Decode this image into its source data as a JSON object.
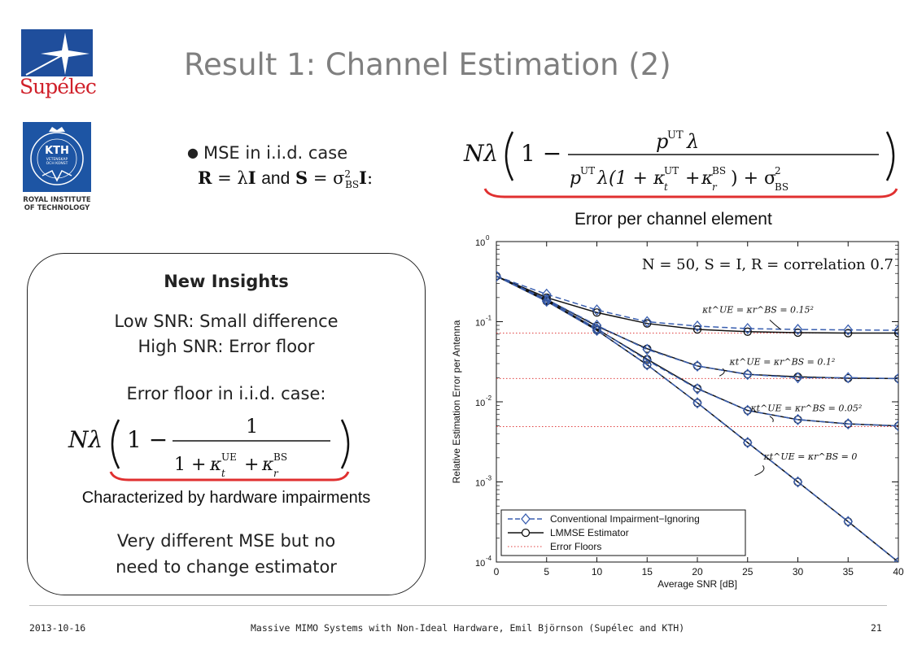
{
  "header": {
    "title": "Result 1: Channel Estimation (2)"
  },
  "logos": {
    "supelec_text": "Supélec",
    "kth_text": "KTH",
    "kth_ring": "VETENSKAP OCH KONST",
    "kth_caption_line1": "ROYAL INSTITUTE",
    "kth_caption_line2": "OF TECHNOLOGY"
  },
  "bullet": {
    "text": "MSE in i.i.d. case",
    "condition_and": "and"
  },
  "formula_label": "Error per channel element",
  "insights": {
    "heading": "New Insights",
    "line1": "Low SNR: Small difference",
    "line2": "High SNR: Error floor",
    "line3": "Error floor in i.i.d. case:",
    "caption": "Characterized by hardware impairments",
    "line4": "Very different MSE but no",
    "line5": "need to change estimator"
  },
  "footer": {
    "date": "2013-10-16",
    "center": "Massive MIMO Systems with Non-Ideal Hardware, Emil Björnson (Supélec and KTH)",
    "page": "21"
  },
  "colors": {
    "supelec_blue": "#1f4e9c",
    "supelec_red": "#d0202a",
    "kth_blue": "#1d55a4",
    "underline_red": "#e03030",
    "series_blue": "#3a5fb0",
    "floor_red": "#e04040"
  },
  "chart_data": {
    "type": "line",
    "title": "",
    "subtitle": "N = 50, S = I, R = correlation 0.7",
    "xlabel": "Average SNR [dB]",
    "ylabel": "Relative Estimation Error per Antenna",
    "xlim": [
      0,
      40
    ],
    "ylim": [
      0.0001,
      1
    ],
    "yscale": "log",
    "x_ticks": [
      0,
      5,
      10,
      15,
      20,
      25,
      30,
      35,
      40
    ],
    "y_ticks": [
      {
        "value": 1,
        "label": "10",
        "exp": "0"
      },
      {
        "value": 0.1,
        "label": "10",
        "exp": "-1"
      },
      {
        "value": 0.01,
        "label": "10",
        "exp": "-2"
      },
      {
        "value": 0.001,
        "label": "10",
        "exp": "-3"
      },
      {
        "value": 0.0001,
        "label": "10",
        "exp": "-4"
      }
    ],
    "x": [
      0,
      5,
      10,
      15,
      20,
      25,
      30,
      35,
      40
    ],
    "grid": false,
    "legend_position": "bottom-left",
    "legend": [
      {
        "label": "Conventional Impairment−Ignoring",
        "style": "dashed-diamond",
        "color": "#3a5fb0"
      },
      {
        "label": "LMMSE Estimator",
        "style": "solid-circle",
        "color": "#111111"
      },
      {
        "label": "Error Floors",
        "style": "dotted",
        "color": "#e04040"
      }
    ],
    "groups": [
      {
        "annotation": "κt^UE = κr^BS = 0.15²",
        "floor": 0.072,
        "conventional": [
          0.37,
          0.22,
          0.14,
          0.1,
          0.088,
          0.082,
          0.08,
          0.079,
          0.078
        ],
        "lmmse": [
          0.37,
          0.2,
          0.13,
          0.095,
          0.08,
          0.075,
          0.073,
          0.072,
          0.072
        ]
      },
      {
        "annotation": "κt^UE = κr^BS = 0.1²",
        "floor": 0.0195,
        "conventional": [
          0.37,
          0.19,
          0.09,
          0.045,
          0.028,
          0.022,
          0.02,
          0.02,
          0.0195
        ],
        "lmmse": [
          0.37,
          0.19,
          0.088,
          0.046,
          0.028,
          0.022,
          0.0205,
          0.0197,
          0.0195
        ]
      },
      {
        "annotation": "κt^UE = κr^BS = 0.05²",
        "floor": 0.0049,
        "conventional": [
          0.37,
          0.185,
          0.082,
          0.033,
          0.0145,
          0.0078,
          0.006,
          0.0053,
          0.005
        ],
        "lmmse": [
          0.37,
          0.185,
          0.081,
          0.034,
          0.0147,
          0.0078,
          0.006,
          0.0053,
          0.005
        ]
      },
      {
        "annotation": "κt^UE = κr^BS = 0",
        "floor": null,
        "conventional": [
          0.37,
          0.18,
          0.078,
          0.029,
          0.0097,
          0.0031,
          0.001,
          0.00032,
          0.0001
        ],
        "lmmse": [
          0.37,
          0.18,
          0.078,
          0.029,
          0.0097,
          0.0031,
          0.001,
          0.00032,
          0.0001
        ]
      }
    ]
  }
}
